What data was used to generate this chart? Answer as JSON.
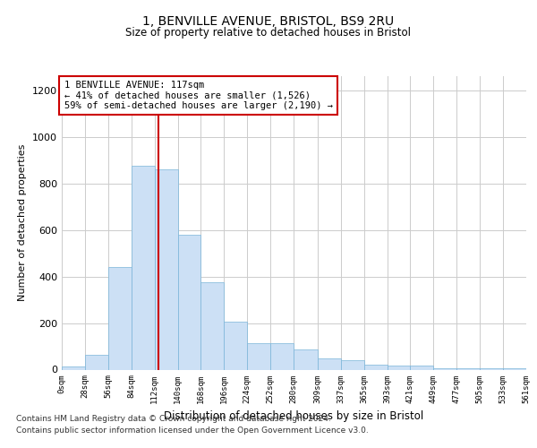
{
  "title1": "1, BENVILLE AVENUE, BRISTOL, BS9 2RU",
  "title2": "Size of property relative to detached houses in Bristol",
  "xlabel": "Distribution of detached houses by size in Bristol",
  "ylabel": "Number of detached properties",
  "footer_line1": "Contains HM Land Registry data © Crown copyright and database right 2024.",
  "footer_line2": "Contains public sector information licensed under the Open Government Licence v3.0.",
  "annotation_line1": "1 BENVILLE AVENUE: 117sqm",
  "annotation_line2": "← 41% of detached houses are smaller (1,526)",
  "annotation_line3": "59% of semi-detached houses are larger (2,190) →",
  "bar_color": "#cce0f5",
  "bar_edge_color": "#7ab5d9",
  "redline_color": "#cc0000",
  "annotation_box_edgecolor": "#cc0000",
  "annotation_box_facecolor": "#ffffff",
  "background_color": "#ffffff",
  "grid_color": "#cccccc",
  "bin_edges": [
    0,
    28,
    56,
    84,
    112,
    140,
    168,
    196,
    224,
    252,
    280,
    309,
    337,
    365,
    393,
    421,
    449,
    477,
    505,
    533,
    561
  ],
  "bin_labels": [
    "0sqm",
    "28sqm",
    "56sqm",
    "84sqm",
    "112sqm",
    "140sqm",
    "168sqm",
    "196sqm",
    "224sqm",
    "252sqm",
    "280sqm",
    "309sqm",
    "337sqm",
    "365sqm",
    "393sqm",
    "421sqm",
    "449sqm",
    "477sqm",
    "505sqm",
    "533sqm",
    "561sqm"
  ],
  "bar_heights": [
    12,
    65,
    440,
    875,
    860,
    580,
    375,
    205,
    115,
    115,
    85,
    50,
    40,
    22,
    18,
    18,
    5,
    5,
    5,
    5
  ],
  "property_size": 117,
  "ylim": [
    0,
    1260
  ],
  "yticks": [
    0,
    200,
    400,
    600,
    800,
    1000,
    1200
  ]
}
